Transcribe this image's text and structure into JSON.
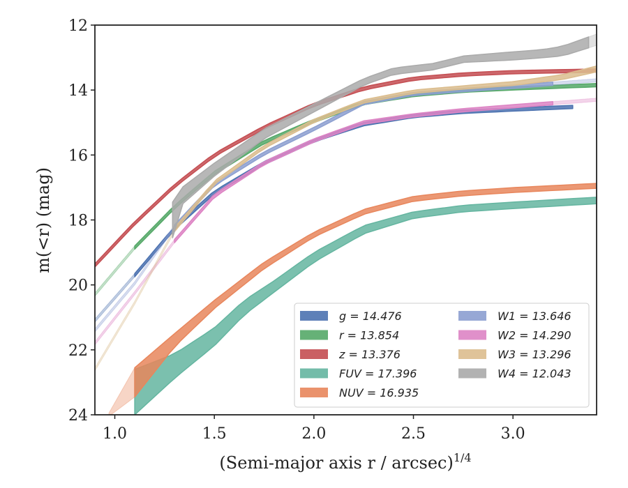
{
  "chart_data": {
    "type": "line",
    "xlabel": "(Semi-major axis r / arcsec)",
    "xlabel_superscript": "1/4",
    "ylabel": "m(<r) (mag)",
    "xlim": [
      0.9,
      3.42
    ],
    "ylim": [
      24,
      12
    ],
    "y_inverted": true,
    "xticks": [
      1.0,
      1.5,
      2.0,
      2.5,
      3.0
    ],
    "xtick_labels": [
      "1.0",
      "1.5",
      "2.0",
      "2.5",
      "3.0"
    ],
    "yticks": [
      12,
      14,
      16,
      18,
      20,
      22,
      24
    ],
    "ytick_labels": [
      "12",
      "14",
      "16",
      "18",
      "20",
      "22",
      "24"
    ],
    "grid": false,
    "legend_position": "lower-right",
    "legend_columns": 2,
    "series": [
      {
        "name": "g = 14.476",
        "legend_label": "g = 14.476",
        "color": "#4c72b0",
        "points": [
          [
            0.9,
            21.1
          ],
          [
            1.1,
            19.7
          ],
          [
            1.3,
            18.25
          ],
          [
            1.5,
            17.15
          ],
          [
            1.75,
            16.25
          ],
          [
            2.0,
            15.55
          ],
          [
            2.25,
            15.05
          ],
          [
            2.5,
            14.8
          ],
          [
            2.75,
            14.67
          ],
          [
            3.0,
            14.6
          ],
          [
            3.3,
            14.52
          ]
        ],
        "width": [
          0.08,
          0.06,
          0.05,
          0.05,
          0.05,
          0.05,
          0.05,
          0.05,
          0.05,
          0.05,
          0.05
        ],
        "faint_segments": [
          [
            0.9,
            1.1
          ],
          [
            3.3,
            3.42
          ]
        ]
      },
      {
        "name": "r = 13.854",
        "legend_label": "r = 13.854",
        "color": "#55a868",
        "points": [
          [
            0.9,
            20.3
          ],
          [
            1.1,
            18.85
          ],
          [
            1.3,
            17.6
          ],
          [
            1.5,
            16.55
          ],
          [
            1.75,
            15.6
          ],
          [
            2.0,
            14.95
          ],
          [
            2.25,
            14.4
          ],
          [
            2.5,
            14.15
          ],
          [
            2.75,
            14.02
          ],
          [
            3.0,
            13.95
          ],
          [
            3.42,
            13.85
          ]
        ],
        "width": [
          0.08,
          0.06,
          0.05,
          0.05,
          0.05,
          0.05,
          0.05,
          0.05,
          0.05,
          0.05,
          0.05
        ],
        "faint_segments": [
          [
            0.9,
            1.1
          ]
        ]
      },
      {
        "name": "z = 13.376",
        "legend_label": "z = 13.376",
        "color": "#c44e52",
        "points": [
          [
            0.9,
            19.4
          ],
          [
            1.1,
            18.1
          ],
          [
            1.3,
            16.95
          ],
          [
            1.5,
            16.0
          ],
          [
            1.75,
            15.15
          ],
          [
            2.0,
            14.45
          ],
          [
            2.25,
            13.95
          ],
          [
            2.5,
            13.65
          ],
          [
            2.75,
            13.52
          ],
          [
            3.0,
            13.45
          ],
          [
            3.42,
            13.4
          ]
        ],
        "width": [
          0.08,
          0.06,
          0.05,
          0.05,
          0.05,
          0.05,
          0.05,
          0.05,
          0.05,
          0.05,
          0.05
        ],
        "faint_segments": []
      },
      {
        "name": "FUV = 17.396",
        "legend_label": "FUV = 17.396",
        "color": "#64b5a0",
        "points": [
          [
            1.1,
            23.3
          ],
          [
            1.3,
            22.5
          ],
          [
            1.5,
            21.6
          ],
          [
            1.65,
            20.7
          ],
          [
            1.8,
            20.05
          ],
          [
            2.0,
            19.15
          ],
          [
            2.25,
            18.3
          ],
          [
            2.5,
            17.85
          ],
          [
            2.75,
            17.65
          ],
          [
            3.0,
            17.55
          ],
          [
            3.42,
            17.4
          ]
        ],
        "width": [
          1.4,
          0.75,
          0.55,
          0.45,
          0.35,
          0.3,
          0.25,
          0.2,
          0.2,
          0.2,
          0.2
        ],
        "faint_segments": []
      },
      {
        "name": "NUV = 16.935",
        "legend_label": "NUV = 16.935",
        "color": "#e8865c",
        "points": [
          [
            0.97,
            24.0
          ],
          [
            1.1,
            23.0
          ],
          [
            1.3,
            21.7
          ],
          [
            1.5,
            20.6
          ],
          [
            1.75,
            19.4
          ],
          [
            2.0,
            18.45
          ],
          [
            2.25,
            17.75
          ],
          [
            2.5,
            17.35
          ],
          [
            2.75,
            17.18
          ],
          [
            3.0,
            17.08
          ],
          [
            3.42,
            16.95
          ]
        ],
        "width": [
          0.1,
          0.9,
          0.4,
          0.25,
          0.2,
          0.15,
          0.15,
          0.15,
          0.15,
          0.15,
          0.15
        ],
        "faint_segments": [
          [
            0.97,
            1.1
          ]
        ]
      },
      {
        "name": "W1 = 13.646",
        "legend_label": "W1 = 13.646",
        "color": "#8c9fd0",
        "points": [
          [
            0.9,
            21.4
          ],
          [
            1.1,
            19.95
          ],
          [
            1.3,
            18.2
          ],
          [
            1.5,
            16.9
          ],
          [
            1.75,
            15.95
          ],
          [
            2.0,
            15.2
          ],
          [
            2.25,
            14.4
          ],
          [
            2.5,
            14.12
          ],
          [
            2.75,
            14.0
          ],
          [
            3.0,
            13.9
          ],
          [
            3.42,
            13.7
          ]
        ],
        "width": [
          0.08,
          0.05,
          0.05,
          0.05,
          0.05,
          0.05,
          0.05,
          0.05,
          0.05,
          0.05,
          0.05
        ],
        "faint_segments": [
          [
            0.9,
            1.3
          ],
          [
            3.2,
            3.42
          ]
        ]
      },
      {
        "name": "W2 = 14.290",
        "legend_label": "W2 = 14.290",
        "color": "#dd84c4",
        "points": [
          [
            0.9,
            21.8
          ],
          [
            1.1,
            20.25
          ],
          [
            1.3,
            18.65
          ],
          [
            1.5,
            17.25
          ],
          [
            1.75,
            16.25
          ],
          [
            2.0,
            15.55
          ],
          [
            2.25,
            15.0
          ],
          [
            2.5,
            14.78
          ],
          [
            2.75,
            14.62
          ],
          [
            3.0,
            14.5
          ],
          [
            3.42,
            14.3
          ]
        ],
        "width": [
          0.08,
          0.05,
          0.05,
          0.05,
          0.05,
          0.05,
          0.05,
          0.05,
          0.05,
          0.05,
          0.05
        ],
        "faint_segments": [
          [
            0.9,
            1.3
          ],
          [
            3.2,
            3.42
          ]
        ]
      },
      {
        "name": "W3 = 13.296",
        "legend_label": "W3 = 13.296",
        "color": "#dbbd8e",
        "points": [
          [
            0.9,
            22.6
          ],
          [
            1.1,
            20.55
          ],
          [
            1.3,
            18.3
          ],
          [
            1.5,
            16.85
          ],
          [
            1.75,
            15.75
          ],
          [
            2.0,
            14.95
          ],
          [
            2.25,
            14.35
          ],
          [
            2.5,
            14.05
          ],
          [
            2.75,
            13.92
          ],
          [
            3.0,
            13.8
          ],
          [
            3.25,
            13.6
          ],
          [
            3.42,
            13.35
          ]
        ],
        "width": [
          0.1,
          0.08,
          0.12,
          0.1,
          0.1,
          0.1,
          0.1,
          0.1,
          0.1,
          0.12,
          0.15,
          0.18
        ],
        "faint_segments": [
          [
            0.9,
            1.3
          ]
        ]
      },
      {
        "name": "W4 = 12.043",
        "legend_label": "W4 = 12.043",
        "color": "#aaaaaa",
        "points": [
          [
            1.29,
            18.0
          ],
          [
            1.3,
            17.45
          ],
          [
            1.5,
            16.45
          ],
          [
            1.75,
            15.35
          ],
          [
            2.0,
            14.55
          ],
          [
            2.25,
            13.75
          ],
          [
            2.4,
            13.42
          ],
          [
            2.6,
            13.28
          ],
          [
            2.75,
            13.05
          ],
          [
            3.0,
            12.95
          ],
          [
            3.15,
            12.88
          ],
          [
            3.25,
            12.8
          ],
          [
            3.42,
            12.45
          ]
        ],
        "width": [
          1.1,
          0.55,
          0.4,
          0.3,
          0.25,
          0.2,
          0.2,
          0.2,
          0.2,
          0.25,
          0.25,
          0.3,
          0.35
        ],
        "faint_segments": [
          [
            3.38,
            3.42
          ]
        ]
      }
    ]
  }
}
